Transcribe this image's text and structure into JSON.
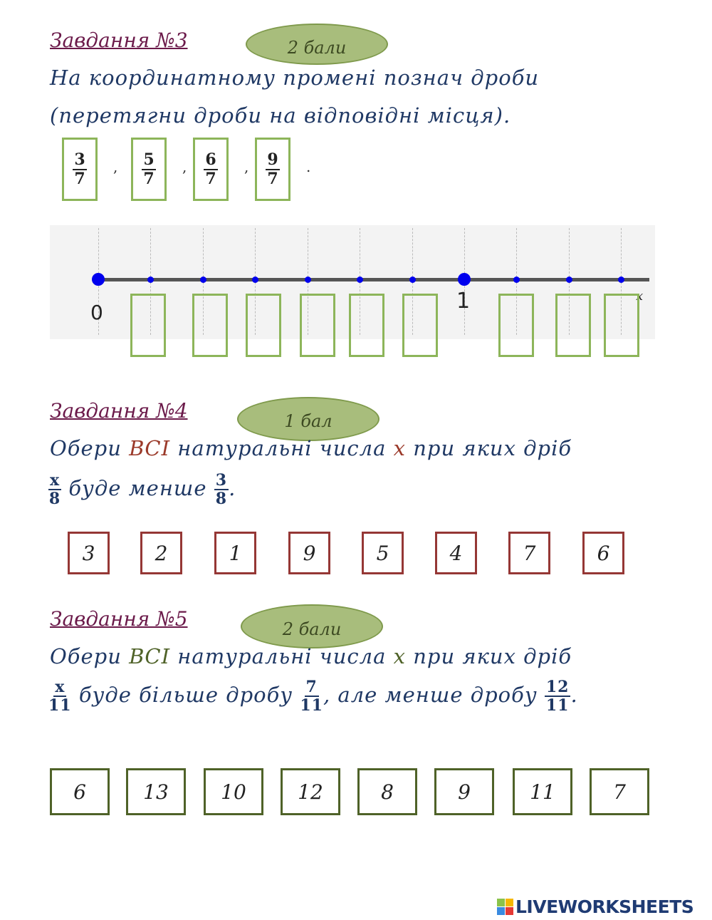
{
  "task3": {
    "title": "Завдання №3",
    "points": "2 бали",
    "line1": "На координатному промені познач дроби",
    "line2": "(перетягни дроби на відповідні місця).",
    "fractions": [
      {
        "n": "3",
        "d": "7"
      },
      {
        "n": "5",
        "d": "7"
      },
      {
        "n": "6",
        "d": "7"
      },
      {
        "n": "9",
        "d": "7"
      }
    ],
    "sep": ",",
    "end": ".",
    "axis": {
      "label0": "0",
      "label1": "1",
      "axis_label": "x",
      "divisions_per_unit": 7,
      "ticks": 10
    },
    "colors": {
      "point": "#0000ee",
      "box": "#8db55a"
    }
  },
  "task4": {
    "title": "Завдання №4",
    "points": "1 бал",
    "pre": "Обери ",
    "emph": "ВСІ",
    "mid": " натуральні числа ",
    "var": "x",
    "post": " при яких дріб",
    "frac": {
      "n": "x",
      "d": "8"
    },
    "line2": "буде  менше",
    "frac2": {
      "n": "3",
      "d": "8"
    },
    "end": ".",
    "options": [
      "3",
      "2",
      "1",
      "9",
      "5",
      "4",
      "7",
      "6"
    ],
    "colors": {
      "emph": "#9b3a2a",
      "box": "#953735"
    }
  },
  "task5": {
    "title": "Завдання №5",
    "points": "2 бали",
    "pre": "Обери ",
    "emph": "ВСІ",
    "mid": " натуральні числа ",
    "var": "x",
    "post": " при яких дріб",
    "frac": {
      "n": "x",
      "d": "11"
    },
    "line2a": " буде  більше дробу ",
    "frac2": {
      "n": "7",
      "d": "11"
    },
    "line2b": ", але менше дробу ",
    "frac3": {
      "n": "12",
      "d": "11"
    },
    "end": ".",
    "options": [
      "6",
      "13",
      "10",
      "12",
      "8",
      "9",
      "11",
      "7"
    ],
    "colors": {
      "emph": "#4f6228",
      "box": "#4f6228"
    }
  },
  "footer": {
    "logo": "LIVEWORKSHEETS"
  }
}
